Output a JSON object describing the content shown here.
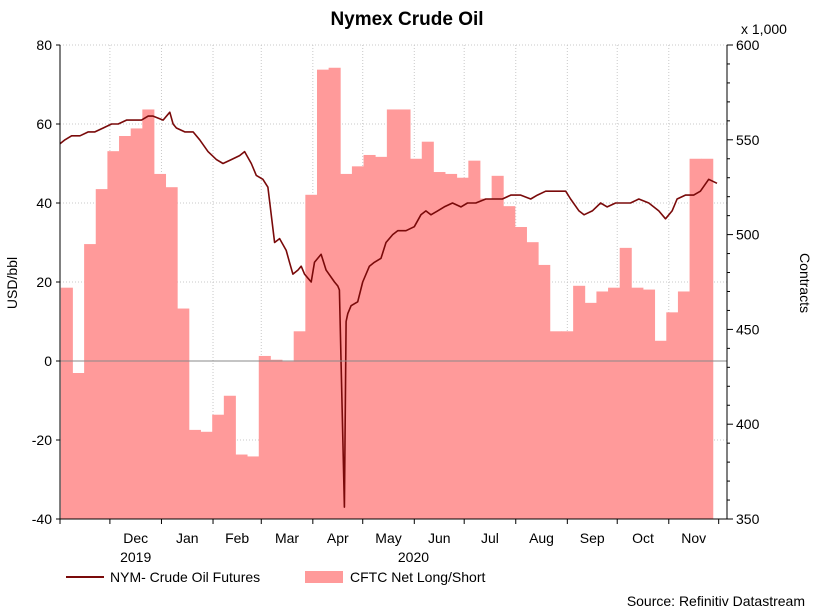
{
  "chart_data": {
    "type": "bar+line",
    "title": "Nymex Crude Oil",
    "ylabel_left": "USD/bbl",
    "ylabel_right": "Contracts",
    "right_axis_multiplier": "x 1,000",
    "ylim_left": [
      -40,
      80
    ],
    "ylim_right": [
      350,
      600
    ],
    "yticks_left": [
      "80",
      "60",
      "40",
      "20",
      "0",
      "-20",
      "-40"
    ],
    "yticks_right": [
      "600",
      "550",
      "500",
      "450",
      "400",
      "350"
    ],
    "months": [
      "Dec",
      "Jan",
      "Feb",
      "Mar",
      "Apr",
      "May",
      "Jun",
      "Jul",
      "Aug",
      "Sep",
      "Oct",
      "Nov"
    ],
    "years": [
      "2019",
      "2020"
    ],
    "grid": true,
    "source": "Source: Refinitiv Datastream",
    "colors": {
      "line": "#7a0a0a",
      "bars": "#ff9a9a",
      "bars_edge": "#e86060",
      "zero": "#888888",
      "grid": "#c8c8c8"
    },
    "series": [
      {
        "name": "CFTC Net Long/Short",
        "type": "bar",
        "axis": "right",
        "x": [
          "2019-11-05",
          "2019-11-12",
          "2019-11-19",
          "2019-11-26",
          "2019-12-03",
          "2019-12-10",
          "2019-12-17",
          "2019-12-24",
          "2019-12-31",
          "2020-01-07",
          "2020-01-14",
          "2020-01-21",
          "2020-01-28",
          "2020-02-04",
          "2020-02-11",
          "2020-02-18",
          "2020-02-25",
          "2020-03-03",
          "2020-03-10",
          "2020-03-17",
          "2020-03-24",
          "2020-03-31",
          "2020-04-07",
          "2020-04-14",
          "2020-04-21",
          "2020-04-28",
          "2020-05-05",
          "2020-05-12",
          "2020-05-19",
          "2020-05-26",
          "2020-06-02",
          "2020-06-09",
          "2020-06-16",
          "2020-06-23",
          "2020-06-30",
          "2020-07-07",
          "2020-07-14",
          "2020-07-21",
          "2020-07-28",
          "2020-08-04",
          "2020-08-11",
          "2020-08-18",
          "2020-08-25",
          "2020-09-01",
          "2020-09-08",
          "2020-09-15",
          "2020-09-22",
          "2020-09-29",
          "2020-10-06",
          "2020-10-13",
          "2020-10-20",
          "2020-10-27",
          "2020-11-03",
          "2020-11-10",
          "2020-11-17",
          "2020-11-24"
        ],
        "values": [
          472,
          427,
          495,
          524,
          544,
          552,
          556,
          566,
          532,
          525,
          461,
          397,
          396,
          405,
          415,
          384,
          383,
          436,
          434,
          433,
          449,
          521,
          587,
          588,
          532,
          536,
          542,
          541,
          566,
          566,
          540,
          549,
          533,
          532,
          530,
          539,
          519,
          531,
          515,
          504,
          496,
          484,
          449,
          449,
          473,
          464,
          470,
          472,
          493,
          472,
          471,
          444,
          459,
          470,
          540,
          540
        ]
      },
      {
        "name": "NYM- Crude Oil Futures",
        "type": "line",
        "axis": "left",
        "x": [
          "2019-11-01",
          "2019-11-04",
          "2019-11-08",
          "2019-11-13",
          "2019-11-18",
          "2019-11-22",
          "2019-11-27",
          "2019-12-02",
          "2019-12-06",
          "2019-12-11",
          "2019-12-16",
          "2019-12-20",
          "2019-12-24",
          "2019-12-27",
          "2020-01-02",
          "2020-01-06",
          "2020-01-08",
          "2020-01-10",
          "2020-01-15",
          "2020-01-20",
          "2020-01-24",
          "2020-01-29",
          "2020-02-03",
          "2020-02-07",
          "2020-02-12",
          "2020-02-17",
          "2020-02-20",
          "2020-02-24",
          "2020-02-27",
          "2020-03-02",
          "2020-03-05",
          "2020-03-09",
          "2020-03-12",
          "2020-03-16",
          "2020-03-18",
          "2020-03-20",
          "2020-03-23",
          "2020-03-25",
          "2020-03-27",
          "2020-03-31",
          "2020-04-02",
          "2020-04-06",
          "2020-04-09",
          "2020-04-14",
          "2020-04-16",
          "2020-04-17",
          "2020-04-20",
          "2020-04-21",
          "2020-04-22",
          "2020-04-24",
          "2020-04-28",
          "2020-05-01",
          "2020-05-05",
          "2020-05-08",
          "2020-05-12",
          "2020-05-15",
          "2020-05-19",
          "2020-05-22",
          "2020-05-27",
          "2020-06-01",
          "2020-06-05",
          "2020-06-08",
          "2020-06-11",
          "2020-06-15",
          "2020-06-19",
          "2020-06-24",
          "2020-06-29",
          "2020-07-03",
          "2020-07-08",
          "2020-07-14",
          "2020-07-20",
          "2020-07-24",
          "2020-07-29",
          "2020-08-04",
          "2020-08-10",
          "2020-08-14",
          "2020-08-19",
          "2020-08-25",
          "2020-08-31",
          "2020-09-03",
          "2020-09-08",
          "2020-09-11",
          "2020-09-16",
          "2020-09-21",
          "2020-09-25",
          "2020-09-30",
          "2020-10-05",
          "2020-10-09",
          "2020-10-14",
          "2020-10-20",
          "2020-10-26",
          "2020-10-30",
          "2020-11-03",
          "2020-11-06",
          "2020-11-11",
          "2020-11-16",
          "2020-11-20",
          "2020-11-25",
          "2020-11-30"
        ],
        "values": [
          55,
          56,
          57,
          57,
          58,
          58,
          59,
          60,
          60,
          61,
          61,
          61,
          62,
          62,
          61,
          63,
          60,
          59,
          58,
          58,
          56,
          53,
          51,
          50,
          51,
          52,
          53,
          50,
          47,
          46,
          44,
          30,
          31,
          28,
          25,
          22,
          23,
          24,
          22,
          20,
          25,
          27,
          23,
          20,
          19,
          18,
          -37,
          10,
          12,
          14,
          15,
          20,
          24,
          25,
          26,
          30,
          32,
          33,
          33,
          34,
          37,
          38,
          37,
          38,
          39,
          40,
          39,
          40,
          40,
          41,
          41,
          41,
          42,
          42,
          41,
          42,
          43,
          43,
          43,
          41,
          38,
          37,
          38,
          40,
          39,
          40,
          40,
          40,
          41,
          40,
          38,
          36,
          38,
          41,
          42,
          42,
          43,
          46,
          45
        ]
      }
    ]
  }
}
